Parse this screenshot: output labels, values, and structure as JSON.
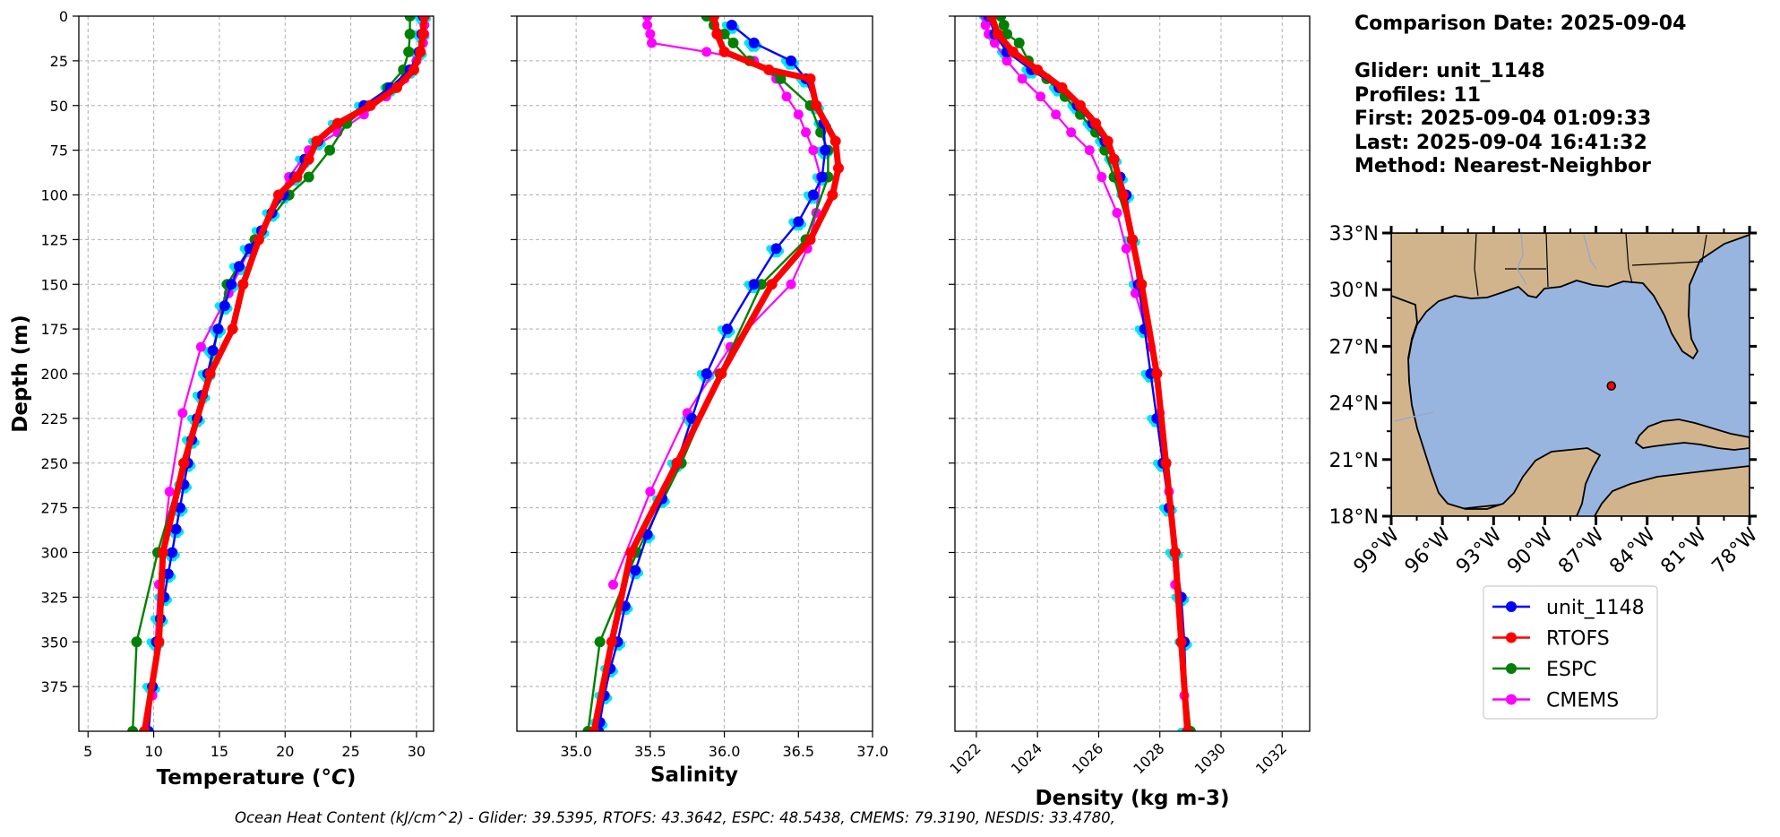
{
  "info": {
    "comparison_date": "Comparison Date: 2025-09-04",
    "glider": "Glider: unit_1148",
    "profiles": "Profiles: 11",
    "first": "First: 2025-09-04 01:09:33",
    "last": "Last: 2025-09-04 16:41:32",
    "method": "Method: Nearest-Neighbor"
  },
  "footer": "Ocean Heat Content (kJ/cm^2) - Glider: 39.5395,  RTOFS: 43.3642,  ESPC: 48.5438,  CMEMS: 79.3190,  NESDIS: 33.4780,",
  "colors": {
    "glider_profiles": "#00e5ee",
    "unit_1148": "#0000ff",
    "RTOFS": "#ff0000",
    "ESPC": "#008000",
    "CMEMS": "#ff00ff",
    "land": "#d2b48c",
    "ocean": "#98b5e0"
  },
  "legend": [
    {
      "name": "unit_1148",
      "color": "#0000ff"
    },
    {
      "name": "RTOFS",
      "color": "#ff0000"
    },
    {
      "name": "ESPC",
      "color": "#008000"
    },
    {
      "name": "CMEMS",
      "color": "#ff00ff"
    }
  ],
  "chart_data": [
    {
      "type": "line",
      "xlabel": "Temperature (°C)",
      "ylabel": "Depth (m)",
      "xlim": [
        4.3,
        31.3
      ],
      "ylim": [
        0,
        400
      ],
      "y_inverted": true,
      "grid": true,
      "xticks": [
        5,
        10,
        15,
        20,
        25,
        30
      ],
      "yticks": [
        0,
        25,
        50,
        75,
        100,
        125,
        150,
        175,
        200,
        225,
        250,
        275,
        300,
        325,
        350,
        375
      ],
      "series": [
        {
          "name": "unit_1148",
          "x": [
            30.5,
            30.4,
            30.2,
            29.5,
            28.0,
            26.0,
            24.0,
            22.5,
            21.5,
            20.7,
            19.9,
            19.0,
            18.2,
            17.3,
            16.5,
            15.9,
            15.4,
            14.9,
            14.5,
            14.1,
            13.7,
            13.3,
            12.9,
            12.6,
            12.3,
            12.0,
            11.7,
            11.4,
            11.1,
            10.8,
            10.5,
            10.2,
            9.9,
            9.6
          ],
          "y": [
            0,
            10,
            20,
            30,
            40,
            50,
            60,
            70,
            80,
            90,
            100,
            110,
            120,
            130,
            140,
            150,
            162,
            175,
            187,
            200,
            212,
            225,
            237,
            250,
            262,
            275,
            287,
            300,
            312,
            325,
            337,
            350,
            375,
            400
          ]
        },
        {
          "name": "RTOFS",
          "x": [
            30.6,
            30.5,
            30.3,
            29.8,
            28.5,
            26.5,
            24.0,
            22.4,
            21.8,
            20.9,
            19.5,
            18.0,
            16.8,
            16.0,
            14.3,
            12.3,
            10.7,
            10.4,
            9.3
          ],
          "y": [
            0,
            10,
            20,
            30,
            40,
            50,
            60,
            70,
            80,
            90,
            100,
            125,
            150,
            175,
            200,
            250,
            300,
            350,
            400
          ]
        },
        {
          "name": "ESPC",
          "x": [
            29.5,
            29.5,
            29.4,
            29.0,
            27.8,
            26.4,
            24.7,
            23.4,
            21.8,
            20.3,
            17.7,
            15.6,
            14.2,
            12.3,
            10.3,
            8.7,
            8.4
          ],
          "y": [
            0,
            10,
            20,
            30,
            40,
            50,
            60,
            75,
            90,
            100,
            125,
            150,
            200,
            250,
            300,
            350,
            400
          ]
        },
        {
          "name": "CMEMS",
          "x": [
            30.6,
            30.6,
            30.6,
            30.5,
            30.0,
            29.1,
            27.7,
            26.0,
            24.0,
            21.8,
            20.3,
            19.0,
            17.3,
            15.7,
            13.6,
            12.2,
            11.2,
            10.4,
            9.9
          ],
          "y": [
            0,
            5,
            10,
            15,
            25,
            35,
            45,
            55,
            65,
            75,
            90,
            110,
            130,
            155,
            185,
            222,
            266,
            318,
            380
          ]
        }
      ]
    },
    {
      "type": "line",
      "xlabel": "Salinity",
      "ylim": [
        0,
        400
      ],
      "xlim": [
        34.6,
        37.0
      ],
      "y_inverted": true,
      "grid": true,
      "xticks": [
        35.0,
        35.5,
        36.0,
        36.5,
        37.0
      ],
      "series": [
        {
          "name": "unit_1148",
          "x": [
            36.05,
            36.2,
            36.45,
            36.55,
            36.62,
            36.67,
            36.68,
            36.66,
            36.6,
            36.5,
            36.35,
            36.2,
            36.02,
            35.88,
            35.78,
            35.68,
            35.58,
            35.48,
            35.4,
            35.33,
            35.28,
            35.23,
            35.19,
            35.16,
            35.15
          ],
          "y": [
            5,
            15,
            25,
            35,
            50,
            60,
            75,
            90,
            100,
            115,
            130,
            150,
            175,
            200,
            225,
            250,
            270,
            290,
            310,
            330,
            350,
            365,
            380,
            395,
            400
          ]
        },
        {
          "name": "RTOFS",
          "x": [
            35.93,
            35.95,
            36.0,
            36.3,
            36.58,
            36.62,
            36.75,
            36.77,
            36.73,
            36.58,
            36.32,
            35.98,
            35.68,
            35.37,
            35.24,
            35.12
          ],
          "y": [
            0,
            10,
            20,
            30,
            35,
            50,
            70,
            85,
            100,
            125,
            150,
            200,
            250,
            300,
            350,
            400
          ]
        },
        {
          "name": "ESPC",
          "x": [
            35.88,
            35.93,
            36.0,
            36.06,
            36.17,
            36.38,
            36.58,
            36.65,
            36.7,
            36.7,
            36.55,
            36.25,
            35.97,
            35.71,
            35.41,
            35.16,
            35.08
          ],
          "y": [
            0,
            5,
            10,
            15,
            25,
            35,
            50,
            65,
            75,
            90,
            125,
            150,
            200,
            250,
            300,
            350,
            400
          ]
        },
        {
          "name": "CMEMS",
          "x": [
            35.48,
            35.48,
            35.5,
            35.51,
            35.88,
            36.2,
            36.35,
            36.42,
            36.5,
            36.55,
            36.6,
            36.65,
            36.62,
            36.56,
            36.45,
            36.04,
            35.75,
            35.5,
            35.25
          ],
          "y": [
            0,
            5,
            10,
            15,
            20,
            25,
            35,
            45,
            55,
            65,
            75,
            90,
            110,
            130,
            150,
            185,
            222,
            266,
            318
          ]
        }
      ]
    },
    {
      "type": "line",
      "xlabel": "Density (kg m-3)",
      "ylim": [
        0,
        400
      ],
      "xlim": [
        1021.3,
        1032.9
      ],
      "y_inverted": true,
      "grid": true,
      "xticks": [
        1022,
        1024,
        1026,
        1028,
        1030,
        1032
      ],
      "series": [
        {
          "name": "unit_1148",
          "x": [
            1022.4,
            1022.6,
            1023.0,
            1023.8,
            1024.7,
            1025.3,
            1025.8,
            1026.2,
            1026.5,
            1026.7,
            1026.9,
            1027.1,
            1027.3,
            1027.5,
            1027.7,
            1027.9,
            1028.1,
            1028.3,
            1028.5,
            1028.7,
            1028.8,
            1028.9
          ],
          "y": [
            0,
            10,
            20,
            30,
            40,
            50,
            60,
            70,
            80,
            90,
            100,
            125,
            150,
            175,
            200,
            225,
            250,
            275,
            300,
            325,
            350,
            400
          ]
        },
        {
          "name": "RTOFS",
          "x": [
            1022.5,
            1022.7,
            1023.2,
            1024.0,
            1024.8,
            1025.4,
            1025.9,
            1026.3,
            1026.5,
            1026.8,
            1027.1,
            1027.4,
            1027.9,
            1028.2,
            1028.5,
            1028.7,
            1028.9
          ],
          "y": [
            0,
            10,
            20,
            30,
            40,
            50,
            60,
            70,
            80,
            100,
            125,
            150,
            200,
            250,
            300,
            350,
            400
          ]
        },
        {
          "name": "ESPC",
          "x": [
            1022.8,
            1022.9,
            1023.0,
            1023.4,
            1023.7,
            1024.3,
            1024.9,
            1025.4,
            1025.9,
            1026.2,
            1026.5,
            1027.1,
            1027.4,
            1027.9,
            1028.2,
            1028.5,
            1028.7,
            1029.0
          ],
          "y": [
            0,
            5,
            10,
            15,
            25,
            35,
            45,
            55,
            65,
            75,
            90,
            125,
            150,
            200,
            250,
            300,
            350,
            400
          ]
        },
        {
          "name": "CMEMS",
          "x": [
            1022.3,
            1022.3,
            1022.4,
            1022.6,
            1023.0,
            1023.5,
            1024.1,
            1024.6,
            1025.1,
            1025.7,
            1026.1,
            1026.6,
            1026.9,
            1027.2,
            1027.7,
            1028.0,
            1028.3,
            1028.5,
            1028.8
          ],
          "y": [
            0,
            5,
            10,
            15,
            25,
            35,
            45,
            55,
            65,
            75,
            90,
            110,
            130,
            155,
            185,
            222,
            266,
            318,
            380
          ]
        }
      ]
    },
    {
      "type": "map",
      "lat_ticks": [
        "18°N",
        "21°N",
        "24°N",
        "27°N",
        "30°N",
        "33°N"
      ],
      "lon_ticks": [
        "99°W",
        "96°W",
        "93°W",
        "90°W",
        "87°W",
        "84°W",
        "81°W",
        "78°W"
      ],
      "lat_range": [
        18,
        33
      ],
      "lon_range": [
        -99,
        -78
      ],
      "glider_position": {
        "lon": -86.1,
        "lat": 24.9
      }
    }
  ]
}
